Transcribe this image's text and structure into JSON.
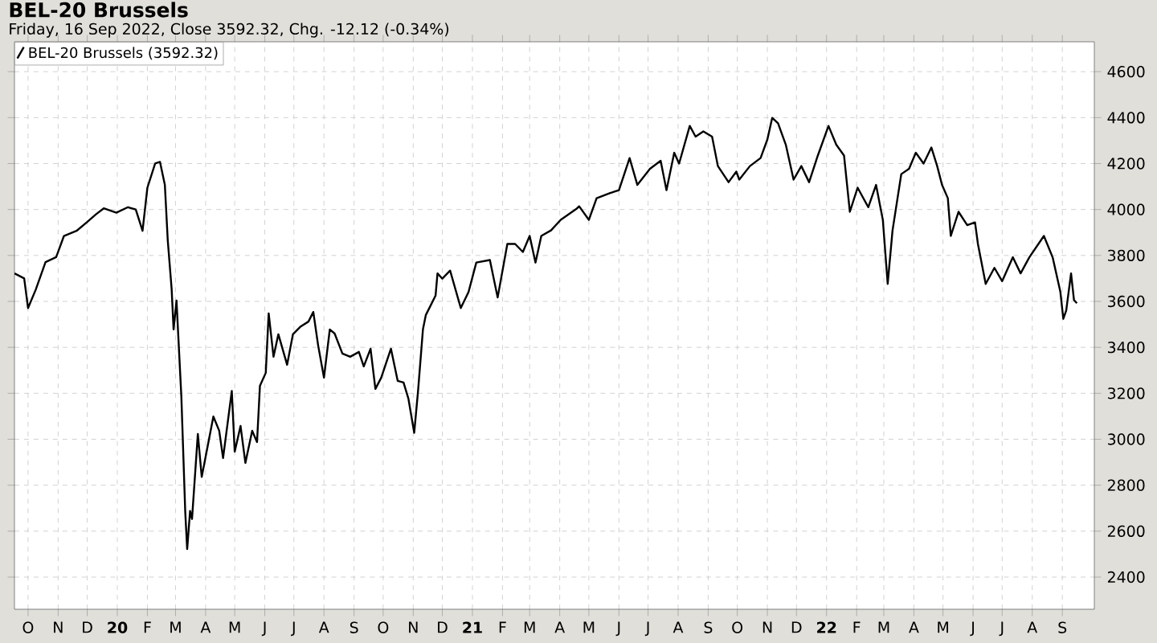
{
  "chart_data": {
    "type": "line",
    "title": "BEL-20 Brussels",
    "subtitle": "Friday, 16 Sep 2022, Close 3592.32, Chg. -12.12 (-0.34%)",
    "x": [
      "2019-09-17",
      "2019-09-27",
      "2019-10-01",
      "2019-10-09",
      "2019-10-19",
      "2019-10-30",
      "2019-11-07",
      "2019-11-20",
      "2019-12-01",
      "2019-12-10",
      "2019-12-18",
      "2019-12-31",
      "2020-01-12",
      "2020-01-20",
      "2020-01-27",
      "2020-02-01",
      "2020-02-09",
      "2020-02-14",
      "2020-02-19",
      "2020-02-22",
      "2020-02-26",
      "2020-02-28",
      "2020-03-02",
      "2020-03-07",
      "2020-03-11",
      "2020-03-13",
      "2020-03-16",
      "2020-03-18",
      "2020-03-24",
      "2020-03-28",
      "2020-04-09",
      "2020-04-15",
      "2020-04-19",
      "2020-04-28",
      "2020-05-01",
      "2020-05-07",
      "2020-05-12",
      "2020-05-19",
      "2020-05-24",
      "2020-05-27",
      "2020-06-02",
      "2020-06-05",
      "2020-06-10",
      "2020-06-15",
      "2020-06-24",
      "2020-06-30",
      "2020-07-08",
      "2020-07-16",
      "2020-07-21",
      "2020-07-26",
      "2020-08-01",
      "2020-08-07",
      "2020-08-12",
      "2020-08-20",
      "2020-08-28",
      "2020-09-06",
      "2020-09-11",
      "2020-09-18",
      "2020-09-23",
      "2020-09-29",
      "2020-10-09",
      "2020-10-16",
      "2020-10-22",
      "2020-10-27",
      "2020-11-02",
      "2020-11-06",
      "2020-11-11",
      "2020-11-14",
      "2020-11-19",
      "2020-11-24",
      "2020-11-26",
      "2020-12-01",
      "2020-12-09",
      "2020-12-20",
      "2020-12-28",
      "2021-01-05",
      "2021-01-19",
      "2021-01-27",
      "2021-02-06",
      "2021-02-14",
      "2021-02-22",
      "2021-03-01",
      "2021-03-07",
      "2021-03-13",
      "2021-03-23",
      "2021-04-02",
      "2021-04-18",
      "2021-04-21",
      "2021-05-01",
      "2021-05-09",
      "2021-05-23",
      "2021-06-01",
      "2021-06-12",
      "2021-06-20",
      "2021-07-03",
      "2021-07-14",
      "2021-07-20",
      "2021-07-28",
      "2021-08-02",
      "2021-08-13",
      "2021-08-19",
      "2021-08-27",
      "2021-09-05",
      "2021-09-11",
      "2021-09-22",
      "2021-09-30",
      "2021-10-03",
      "2021-10-14",
      "2021-10-25",
      "2021-11-01",
      "2021-11-06",
      "2021-11-12",
      "2021-11-20",
      "2021-11-28",
      "2021-12-06",
      "2021-12-14",
      "2021-12-23",
      "2022-01-03",
      "2022-01-11",
      "2022-01-19",
      "2022-01-25",
      "2022-02-02",
      "2022-02-13",
      "2022-02-21",
      "2022-02-28",
      "2022-03-05",
      "2022-03-10",
      "2022-03-19",
      "2022-03-27",
      "2022-04-03",
      "2022-04-11",
      "2022-04-19",
      "2022-04-25",
      "2022-04-30",
      "2022-05-06",
      "2022-05-09",
      "2022-05-17",
      "2022-05-26",
      "2022-06-03",
      "2022-06-06",
      "2022-06-14",
      "2022-06-23",
      "2022-07-01",
      "2022-07-12",
      "2022-07-20",
      "2022-07-29",
      "2022-08-13",
      "2022-08-22",
      "2022-08-30",
      "2022-09-02",
      "2022-09-05",
      "2022-09-10",
      "2022-09-13",
      "2022-09-16"
    ],
    "series": [
      {
        "name": "BEL-20 Brussels (3592.32)",
        "color": "#000000",
        "values": [
          3722,
          3700,
          3571,
          3652,
          3771,
          3793,
          3885,
          3907,
          3946,
          3979,
          4005,
          3986,
          4010,
          4000,
          3907,
          4095,
          4200,
          4207,
          4107,
          3865,
          3653,
          3478,
          3604,
          3186,
          2685,
          2522,
          2688,
          2653,
          3023,
          2836,
          3099,
          3037,
          2918,
          3210,
          2946,
          3058,
          2897,
          3037,
          2988,
          3233,
          3289,
          3548,
          3359,
          3457,
          3324,
          3457,
          3491,
          3512,
          3554,
          3408,
          3268,
          3478,
          3460,
          3373,
          3359,
          3380,
          3317,
          3394,
          3219,
          3268,
          3394,
          3254,
          3247,
          3177,
          3028,
          3212,
          3478,
          3541,
          3583,
          3625,
          3722,
          3699,
          3734,
          3571,
          3641,
          3769,
          3780,
          3617,
          3850,
          3850,
          3815,
          3885,
          3769,
          3885,
          3909,
          3955,
          4002,
          4014,
          3955,
          4049,
          4072,
          4084,
          4224,
          4107,
          4177,
          4212,
          4084,
          4247,
          4200,
          4364,
          4317,
          4340,
          4317,
          4189,
          4119,
          4165,
          4130,
          4189,
          4224,
          4305,
          4399,
          4375,
          4282,
          4130,
          4189,
          4119,
          4235,
          4364,
          4282,
          4235,
          3990,
          4095,
          4010,
          4107,
          3955,
          3676,
          3909,
          4154,
          4177,
          4247,
          4200,
          4270,
          4189,
          4107,
          4049,
          3885,
          3990,
          3932,
          3944,
          3850,
          3676,
          3746,
          3688,
          3792,
          3722,
          3792,
          3885,
          3792,
          3641,
          3524,
          3560,
          3722,
          3606,
          3592
        ]
      }
    ],
    "xlim": [
      "2019-09-17",
      "2022-10-04"
    ],
    "xticks": [
      {
        "value": "2019-10-01",
        "label": "O"
      },
      {
        "value": "2019-11-01",
        "label": "N"
      },
      {
        "value": "2019-12-01",
        "label": "D"
      },
      {
        "value": "2020-01-01",
        "label": "20"
      },
      {
        "value": "2020-02-01",
        "label": "F"
      },
      {
        "value": "2020-03-01",
        "label": "M"
      },
      {
        "value": "2020-04-01",
        "label": "A"
      },
      {
        "value": "2020-05-01",
        "label": "M"
      },
      {
        "value": "2020-06-01",
        "label": "J"
      },
      {
        "value": "2020-07-01",
        "label": "J"
      },
      {
        "value": "2020-08-01",
        "label": "A"
      },
      {
        "value": "2020-09-01",
        "label": "S"
      },
      {
        "value": "2020-10-01",
        "label": "O"
      },
      {
        "value": "2020-11-01",
        "label": "N"
      },
      {
        "value": "2020-12-01",
        "label": "D"
      },
      {
        "value": "2021-01-01",
        "label": "21"
      },
      {
        "value": "2021-02-01",
        "label": "F"
      },
      {
        "value": "2021-03-01",
        "label": "M"
      },
      {
        "value": "2021-04-01",
        "label": "A"
      },
      {
        "value": "2021-05-01",
        "label": "M"
      },
      {
        "value": "2021-06-01",
        "label": "J"
      },
      {
        "value": "2021-07-01",
        "label": "J"
      },
      {
        "value": "2021-08-01",
        "label": "A"
      },
      {
        "value": "2021-09-01",
        "label": "S"
      },
      {
        "value": "2021-10-01",
        "label": "O"
      },
      {
        "value": "2021-11-01",
        "label": "N"
      },
      {
        "value": "2021-12-01",
        "label": "D"
      },
      {
        "value": "2022-01-01",
        "label": "22"
      },
      {
        "value": "2022-02-01",
        "label": "F"
      },
      {
        "value": "2022-03-01",
        "label": "M"
      },
      {
        "value": "2022-04-01",
        "label": "A"
      },
      {
        "value": "2022-05-01",
        "label": "M"
      },
      {
        "value": "2022-06-01",
        "label": "J"
      },
      {
        "value": "2022-07-01",
        "label": "J"
      },
      {
        "value": "2022-08-01",
        "label": "A"
      },
      {
        "value": "2022-09-01",
        "label": "S"
      }
    ],
    "ylim": [
      2260,
      4730
    ],
    "yticks": [
      2400,
      2600,
      2800,
      3000,
      3200,
      3400,
      3600,
      3800,
      4000,
      4200,
      4400,
      4600
    ],
    "grid": true,
    "legend": "top left",
    "marker": "none",
    "line_style": "solid"
  }
}
